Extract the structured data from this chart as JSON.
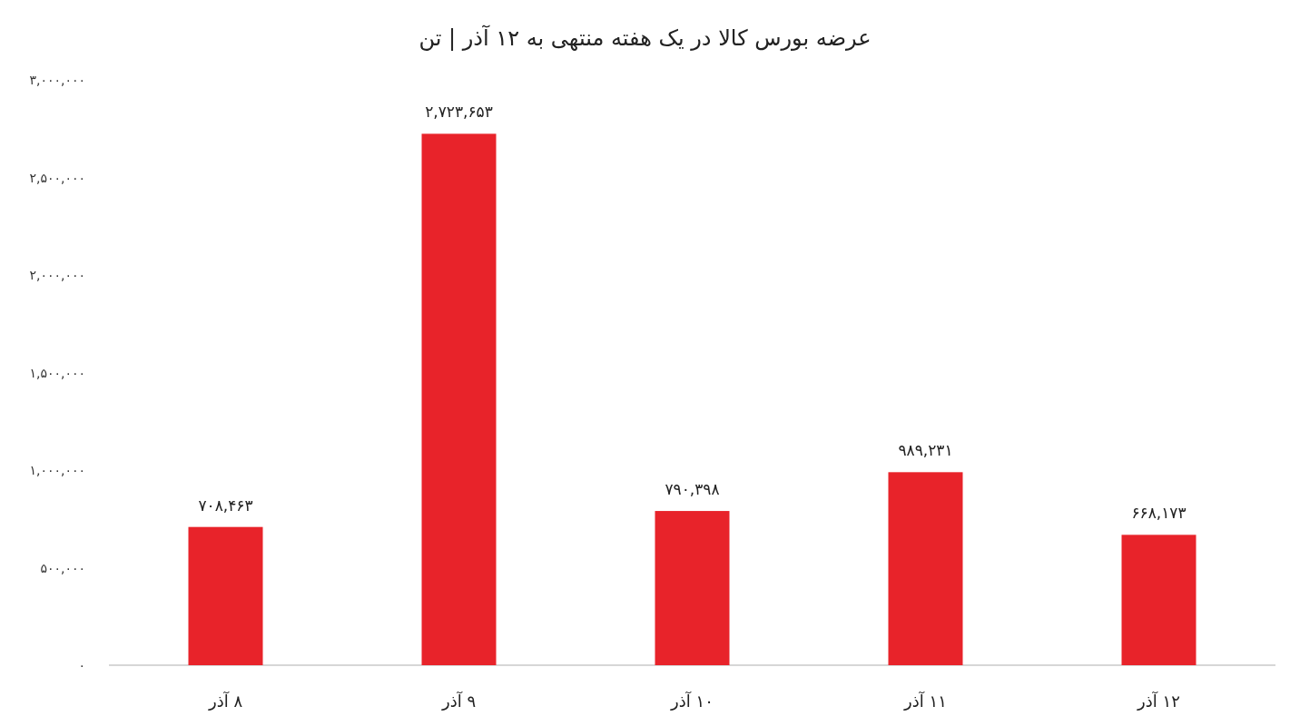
{
  "chart_data": {
    "type": "bar",
    "title": "عرضه بورس کالا در یک هفته منتهی به ۱۲ آذر | تن",
    "categories": [
      "۸ آذر",
      "۹ آذر",
      "۱۰ آذر",
      "۱۱ آذر",
      "۱۲ آذر"
    ],
    "values": [
      708463,
      2723653,
      790398,
      989231,
      668173
    ],
    "value_labels": [
      "۷۰۸,۴۶۳",
      "۲,۷۲۳,۶۵۳",
      "۷۹۰,۳۹۸",
      "۹۸۹,۲۳۱",
      "۶۶۸,۱۷۳"
    ],
    "color": "#e8232a",
    "ylim": [
      0,
      3000000
    ],
    "yticks": [
      {
        "value": 0,
        "label": "۰"
      },
      {
        "value": 500000,
        "label": "۵۰۰,۰۰۰"
      },
      {
        "value": 1000000,
        "label": "۱,۰۰۰,۰۰۰"
      },
      {
        "value": 1500000,
        "label": "۱,۵۰۰,۰۰۰"
      },
      {
        "value": 2000000,
        "label": "۲,۰۰۰,۰۰۰"
      },
      {
        "value": 2500000,
        "label": "۲,۵۰۰,۰۰۰"
      },
      {
        "value": 3000000,
        "label": "۳,۰۰۰,۰۰۰"
      }
    ],
    "grid": false
  }
}
